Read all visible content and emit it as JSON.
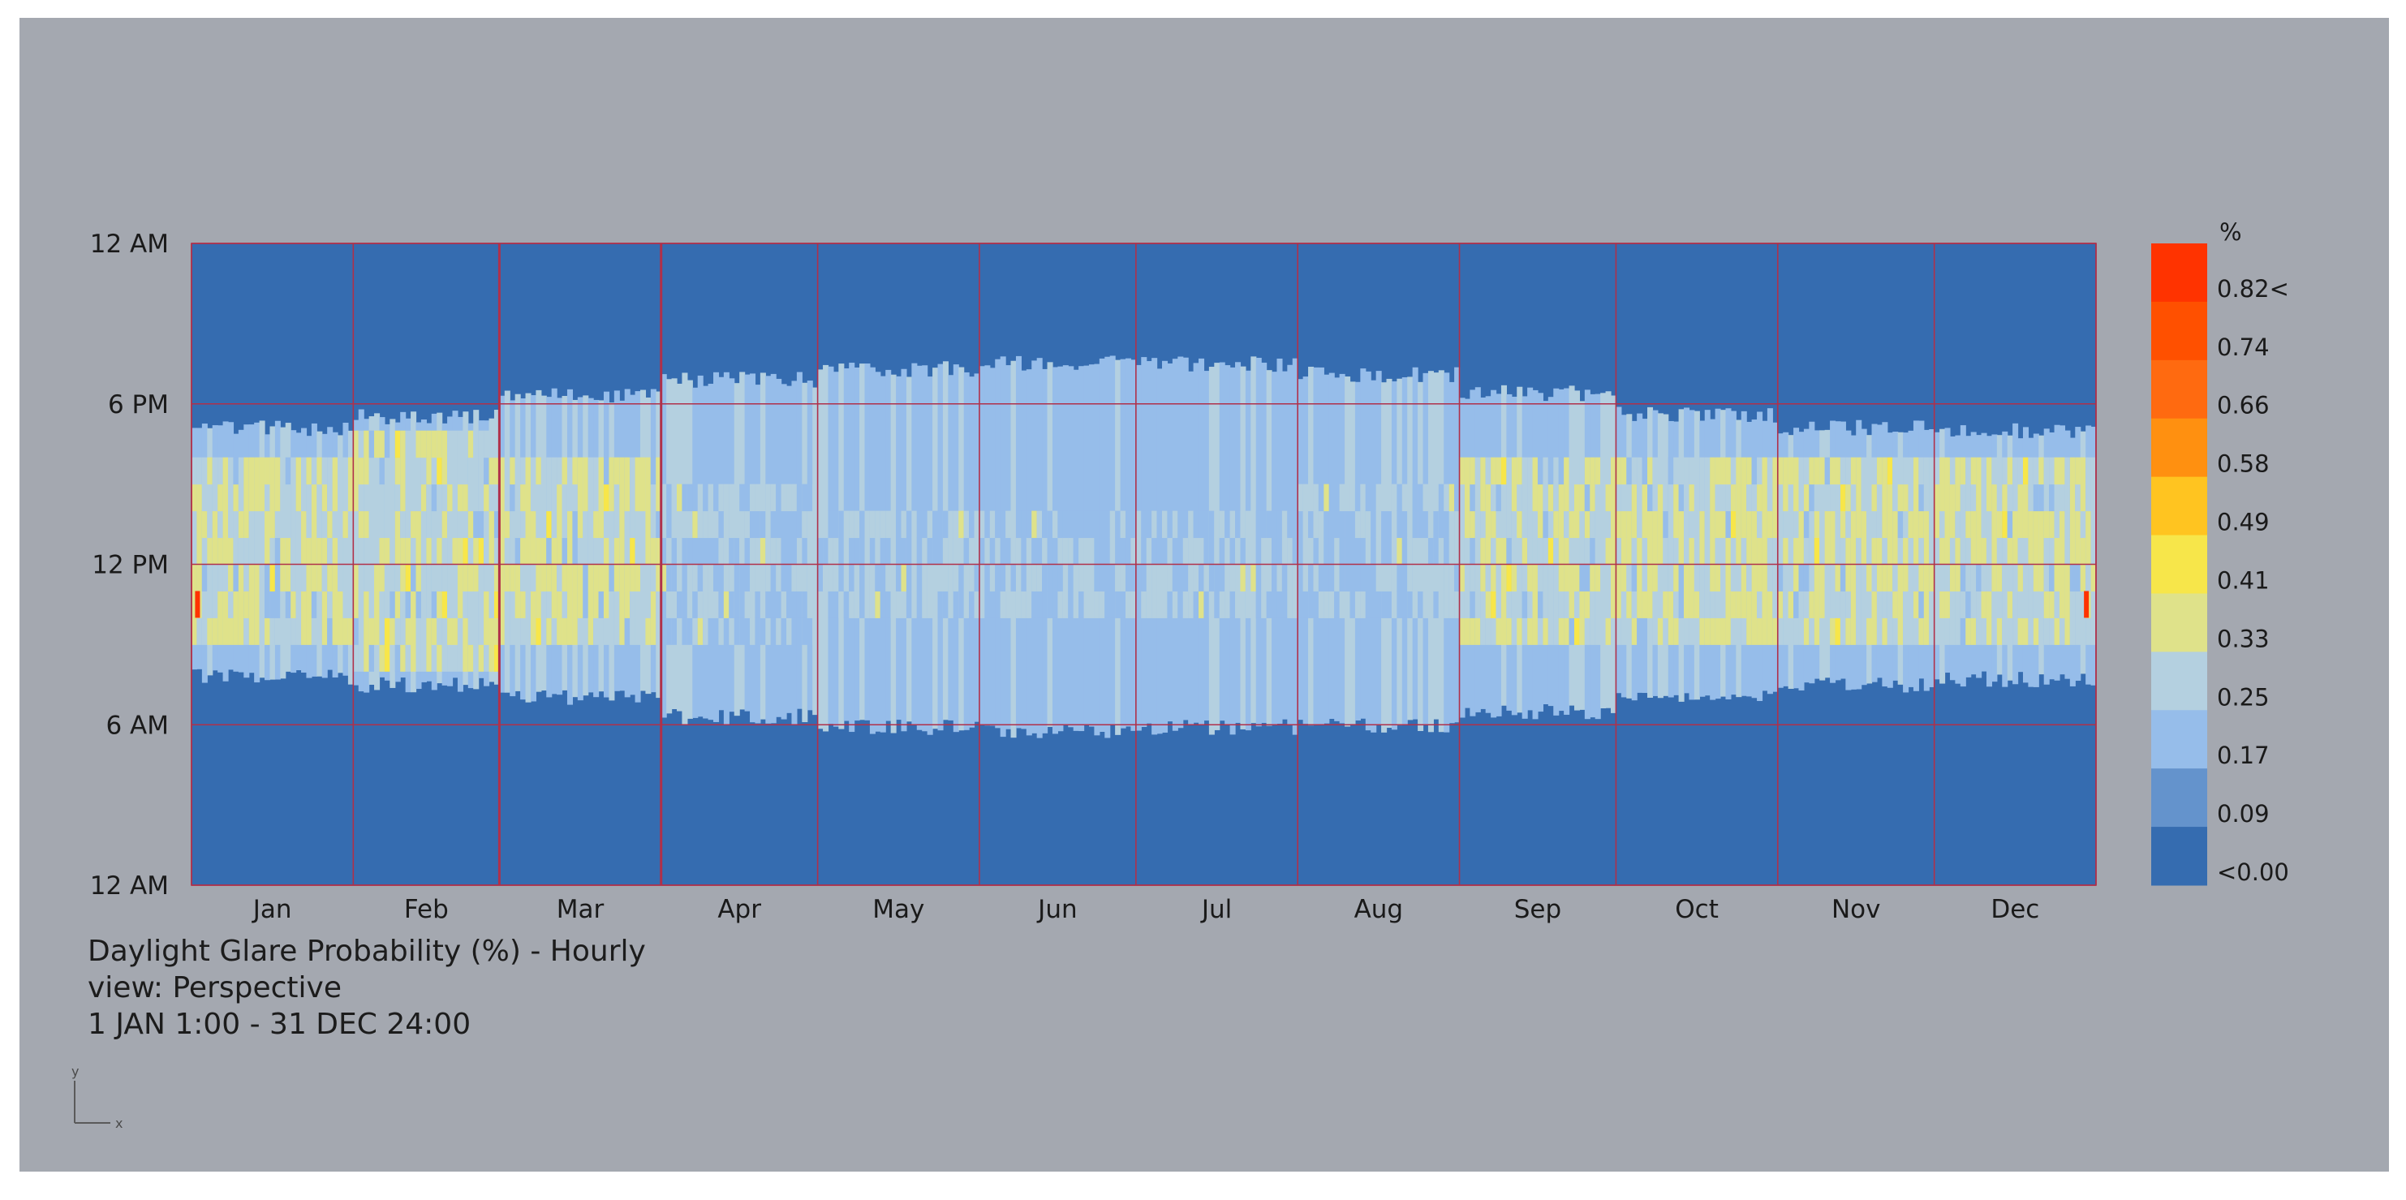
{
  "window": {
    "background": "#a4a8b0"
  },
  "caption": {
    "title": "Daylight Glare Probability (%) - Hourly",
    "view": "view: Perspective",
    "range": "1 JAN 1:00 - 31 DEC 24:00"
  },
  "axis_widget": {
    "y": "y",
    "x": "x"
  },
  "chart_data": {
    "type": "heatmap",
    "title": "Daylight Glare Probability (%) - Hourly",
    "x_categories": [
      "Jan",
      "Feb",
      "Mar",
      "Apr",
      "May",
      "Jun",
      "Jul",
      "Aug",
      "Sep",
      "Oct",
      "Nov",
      "Dec"
    ],
    "y_ticks": [
      {
        "label": "12 AM",
        "hour": 24
      },
      {
        "label": "6 PM",
        "hour": 18
      },
      {
        "label": "12 PM",
        "hour": 12
      },
      {
        "label": "6 AM",
        "hour": 6
      },
      {
        "label": "12 AM",
        "hour": 0
      }
    ],
    "y_range_hours": [
      0,
      24
    ],
    "days_in_year": 365,
    "legend": {
      "unit": "%",
      "labels": [
        "0.82<",
        "0.74",
        "0.66",
        "0.58",
        "0.49",
        "0.41",
        "0.33",
        "0.25",
        "0.17",
        "0.09",
        "<0.00"
      ],
      "colors": [
        "#ff3300",
        "#ff5000",
        "#ff6a10",
        "#ff9010",
        "#ffc420",
        "#f7e64a",
        "#dfe28a",
        "#b4d0e0",
        "#96bdea",
        "#6493cc",
        "#356cb0"
      ]
    },
    "background_color": "#356cb0",
    "gridline_color": "#b0304a",
    "monthly_profile": [
      {
        "month": "Jan",
        "sunrise": 7.8,
        "sunset": 17.1,
        "glare_start": 9.0,
        "glare_end": 16.0,
        "glare_level": 0.41
      },
      {
        "month": "Feb",
        "sunrise": 7.5,
        "sunset": 17.5,
        "glare_start": 8.9,
        "glare_end": 16.2,
        "glare_level": 0.41
      },
      {
        "month": "Mar",
        "sunrise": 7.0,
        "sunset": 18.3,
        "glare_start": 9.2,
        "glare_end": 16.0,
        "glare_level": 0.41
      },
      {
        "month": "Apr",
        "sunrise": 6.3,
        "sunset": 18.9,
        "glare_start": 9.8,
        "glare_end": 14.8,
        "glare_level": 0.33
      },
      {
        "month": "May",
        "sunrise": 5.9,
        "sunset": 19.3,
        "glare_start": 10.0,
        "glare_end": 14.0,
        "glare_level": 0.33
      },
      {
        "month": "Jun",
        "sunrise": 5.8,
        "sunset": 19.5,
        "glare_start": 10.2,
        "glare_end": 13.8,
        "glare_level": 0.33
      },
      {
        "month": "Jul",
        "sunrise": 5.9,
        "sunset": 19.5,
        "glare_start": 10.2,
        "glare_end": 13.8,
        "glare_level": 0.33
      },
      {
        "month": "Aug",
        "sunrise": 6.0,
        "sunset": 19.1,
        "glare_start": 10.0,
        "glare_end": 14.2,
        "glare_level": 0.33
      },
      {
        "month": "Sep",
        "sunrise": 6.5,
        "sunset": 18.4,
        "glare_start": 9.5,
        "glare_end": 15.2,
        "glare_level": 0.41
      },
      {
        "month": "Oct",
        "sunrise": 7.1,
        "sunset": 17.6,
        "glare_start": 9.0,
        "glare_end": 16.0,
        "glare_level": 0.41
      },
      {
        "month": "Nov",
        "sunrise": 7.5,
        "sunset": 17.1,
        "glare_start": 9.0,
        "glare_end": 16.0,
        "glare_level": 0.41
      },
      {
        "month": "Dec",
        "sunrise": 7.7,
        "sunset": 17.0,
        "glare_start": 9.0,
        "glare_end": 16.0,
        "glare_level": 0.41
      }
    ]
  }
}
